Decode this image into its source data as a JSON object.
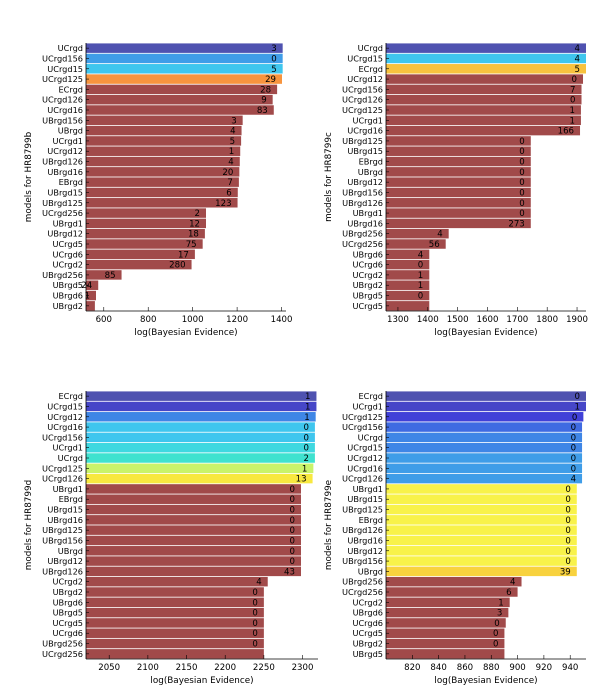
{
  "chart_data": [
    {
      "type": "bar",
      "orientation": "horizontal",
      "ylabel": "models for HR8799b",
      "xlabel": "log(Bayesian Evidence)",
      "xlim": [
        520,
        1420
      ],
      "xticks": [
        600,
        800,
        1000,
        1200,
        1400
      ],
      "categories": [
        "UCrgd",
        "UCrgd156",
        "UCrgd15",
        "UCrgd125",
        "ECrgd",
        "UCrgd126",
        "UCrgd16",
        "UBrgd156",
        "UBrgd",
        "UCrgd1",
        "UCrgd12",
        "UBrgd126",
        "UBrgd16",
        "EBrgd",
        "UBrgd15",
        "UBrgd125",
        "UCrgd256",
        "UBrgd1",
        "UBrgd12",
        "UCrgd5",
        "UCrgd6",
        "UCrgd2",
        "UBrgd256",
        "UBrgd5",
        "UBrgd6",
        "UBrgd2"
      ],
      "values": [
        1405,
        1405,
        1405,
        1402,
        1380,
        1360,
        1365,
        1225,
        1220,
        1218,
        1214,
        1212,
        1210,
        1208,
        1203,
        1202,
        1060,
        1060,
        1055,
        1045,
        1010,
        995,
        680,
        575,
        565,
        560
      ],
      "labels": [
        "3",
        "0",
        "5",
        "29",
        "28",
        "9",
        "83",
        "3",
        "4",
        "5",
        "1",
        "4",
        "20",
        "7",
        "6",
        "123",
        "2",
        "12",
        "18",
        "75",
        "17",
        "280",
        "85",
        "24",
        "1",
        ""
      ],
      "colors": [
        "#4f52b0",
        "#3f9de8",
        "#3fc6ee",
        "#f7943e",
        "#a14a4a",
        "#a14a4a",
        "#a14a4a",
        "#a14a4a",
        "#a14a4a",
        "#a14a4a",
        "#a14a4a",
        "#a14a4a",
        "#a14a4a",
        "#a14a4a",
        "#a14a4a",
        "#a14a4a",
        "#a14a4a",
        "#a14a4a",
        "#a14a4a",
        "#a14a4a",
        "#a14a4a",
        "#a14a4a",
        "#a14a4a",
        "#a14a4a",
        "#a14a4a",
        "#a14a4a"
      ]
    },
    {
      "type": "bar",
      "orientation": "horizontal",
      "ylabel": "models for HR8799c",
      "xlabel": "log(Bayesian Evidence)",
      "xlim": [
        1260,
        1930
      ],
      "xticks": [
        1300,
        1400,
        1500,
        1600,
        1700,
        1800,
        1900
      ],
      "categories": [
        "UCrgd",
        "UCrgd15",
        "ECrgd",
        "UCrgd12",
        "UCrgd156",
        "UCrgd126",
        "UCrgd125",
        "UCrgd1",
        "UCrgd16",
        "UBrgd125",
        "UBrgd15",
        "EBrgd",
        "UBrgd",
        "UBrgd12",
        "UBrgd156",
        "UBrgd126",
        "UBrgd1",
        "UBrgd16",
        "UBrgd256",
        "UCrgd256",
        "UBrgd6",
        "UCrgd6",
        "UCrgd2",
        "UBrgd2",
        "UBrgd5",
        "UCrgd5"
      ],
      "values": [
        1930,
        1930,
        1930,
        1920,
        1915,
        1915,
        1913,
        1913,
        1910,
        1745,
        1745,
        1745,
        1745,
        1745,
        1745,
        1745,
        1745,
        1745,
        1470,
        1460,
        1405,
        1405,
        1405,
        1405,
        1405,
        1405
      ],
      "labels": [
        "4",
        "4",
        "5",
        "0",
        "7",
        "0",
        "1",
        "1",
        "166",
        "0",
        "0",
        "0",
        "0",
        "0",
        "0",
        "0",
        "0",
        "273",
        "4",
        "56",
        "4",
        "0",
        "1",
        "1",
        "0",
        ""
      ],
      "colors": [
        "#4f52b0",
        "#3fc6ee",
        "#f8c23e",
        "#a14a4a",
        "#a14a4a",
        "#a14a4a",
        "#a14a4a",
        "#a14a4a",
        "#a14a4a",
        "#a14a4a",
        "#a14a4a",
        "#a14a4a",
        "#a14a4a",
        "#a14a4a",
        "#a14a4a",
        "#a14a4a",
        "#a14a4a",
        "#a14a4a",
        "#a14a4a",
        "#a14a4a",
        "#a14a4a",
        "#a14a4a",
        "#a14a4a",
        "#a14a4a",
        "#a14a4a",
        "#a14a4a"
      ]
    },
    {
      "type": "bar",
      "orientation": "horizontal",
      "ylabel": "models for HR8799d",
      "xlabel": "log(Bayesian Evidence)",
      "xlim": [
        2020,
        2320
      ],
      "xticks": [
        2050,
        2100,
        2150,
        2200,
        2250,
        2300
      ],
      "categories": [
        "ECrgd",
        "UCrgd15",
        "UCrgd12",
        "UCrgd16",
        "UCrgd156",
        "UCrgd1",
        "UCrgd",
        "UCrgd125",
        "UCrgd126",
        "UBrgd1",
        "EBrgd",
        "UBrgd15",
        "UBrgd16",
        "UBrgd125",
        "UBrgd156",
        "UBrgd",
        "UBrgd12",
        "UBrgd126",
        "UCrgd2",
        "UBrgd2",
        "UBrgd6",
        "UBrgd5",
        "UCrgd5",
        "UCrgd6",
        "UBrgd256",
        "UCrgd256"
      ],
      "values": [
        2318,
        2318,
        2317,
        2316,
        2316,
        2316,
        2316,
        2314,
        2313,
        2298,
        2298,
        2298,
        2298,
        2298,
        2298,
        2298,
        2298,
        2298,
        2255,
        2250,
        2250,
        2250,
        2250,
        2250,
        2250,
        2250
      ],
      "labels": [
        "1",
        "1",
        "1",
        "0",
        "0",
        "0",
        "2",
        "1",
        "13",
        "0",
        "0",
        "0",
        "0",
        "0",
        "0",
        "0",
        "0",
        "43",
        "4",
        "0",
        "0",
        "0",
        "0",
        "0",
        "0",
        ""
      ],
      "colors": [
        "#4f52b0",
        "#4646c8",
        "#3f86e6",
        "#3fc6ee",
        "#3fc6ee",
        "#3fd8e0",
        "#3fe2cf",
        "#c9f36a",
        "#f8e83f",
        "#a14a4a",
        "#a14a4a",
        "#a14a4a",
        "#a14a4a",
        "#a14a4a",
        "#a14a4a",
        "#a14a4a",
        "#a14a4a",
        "#a14a4a",
        "#a14a4a",
        "#a14a4a",
        "#a14a4a",
        "#a14a4a",
        "#a14a4a",
        "#a14a4a",
        "#a14a4a",
        "#a14a4a"
      ]
    },
    {
      "type": "bar",
      "orientation": "horizontal",
      "ylabel": "models for HR8799e",
      "xlabel": "log(Bayesian Evidence)",
      "xlim": [
        800,
        952
      ],
      "xticks": [
        820,
        840,
        860,
        880,
        900,
        920,
        940
      ],
      "categories": [
        "ECrgd",
        "UCrgd1",
        "UCrgd125",
        "UCrgd156",
        "UCrgd",
        "UCrgd15",
        "UCrgd12",
        "UCrgd16",
        "UCrgd126",
        "UBrgd1",
        "UBrgd15",
        "UBrgd125",
        "EBrgd",
        "UBrgd126",
        "UBrgd16",
        "UBrgd12",
        "UBrgd156",
        "UBrgd",
        "UBrgd256",
        "UCrgd256",
        "UCrgd2",
        "UBrgd6",
        "UCrgd6",
        "UCrgd5",
        "UBrgd2",
        "UBrgd5"
      ],
      "values": [
        952,
        952,
        950,
        949,
        949,
        949,
        949,
        949,
        949,
        945,
        945,
        945,
        945,
        945,
        945,
        945,
        945,
        945,
        903,
        900,
        894,
        893,
        891,
        890,
        890,
        890
      ],
      "labels": [
        "0",
        "1",
        "0",
        "0",
        "0",
        "0",
        "0",
        "0",
        "4",
        "0",
        "0",
        "0",
        "0",
        "0",
        "0",
        "0",
        "0",
        "39",
        "4",
        "6",
        "1",
        "3",
        "0",
        "0",
        "0",
        ""
      ],
      "colors": [
        "#4f52b0",
        "#4646c8",
        "#4040d8",
        "#3f6be2",
        "#3f86e6",
        "#3f86e6",
        "#3f9de8",
        "#3f9de8",
        "#3f9de8",
        "#f8f24a",
        "#f8f24a",
        "#f8f24a",
        "#f8f24a",
        "#f8f24a",
        "#f8f24a",
        "#f8f24a",
        "#f8f24a",
        "#f8d23e",
        "#a14a4a",
        "#a14a4a",
        "#a14a4a",
        "#a14a4a",
        "#a14a4a",
        "#a14a4a",
        "#a14a4a",
        "#a14a4a"
      ]
    }
  ]
}
